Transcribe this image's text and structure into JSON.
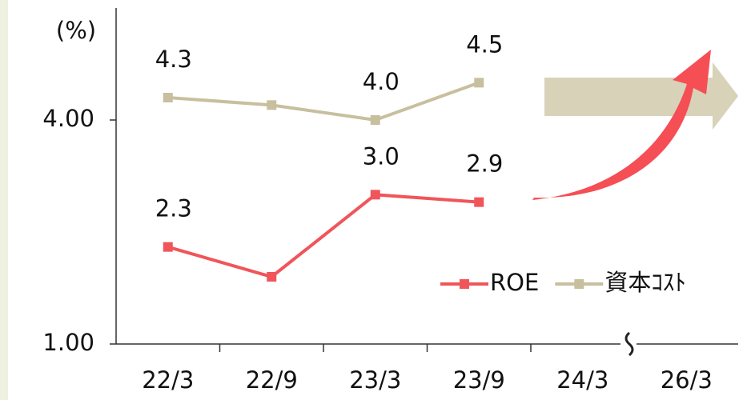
{
  "chart_data": {
    "type": "line",
    "y_label": "(%)",
    "categories": [
      "22/3",
      "22/9",
      "23/3",
      "23/9",
      "24/3",
      "26/3"
    ],
    "series": [
      {
        "name": "ROE",
        "color": "#f0555a",
        "values": [
          2.3,
          1.9,
          3.0,
          2.9,
          null,
          null
        ],
        "value_labels": [
          "2.3",
          null,
          "3.0",
          "2.9",
          null,
          null
        ]
      },
      {
        "name": "資本ｺｽﾄ",
        "color": "#c8bf9f",
        "values": [
          4.3,
          4.2,
          4.0,
          4.5,
          null,
          null
        ],
        "value_labels": [
          "4.3",
          null,
          "4.0",
          "4.5",
          null,
          null
        ]
      }
    ],
    "ylim": [
      1,
      5.5
    ],
    "yticks": [
      {
        "value": 1,
        "label": "1.00"
      },
      {
        "value": 4,
        "label": "4.00"
      }
    ],
    "legend": "bottom-right"
  }
}
